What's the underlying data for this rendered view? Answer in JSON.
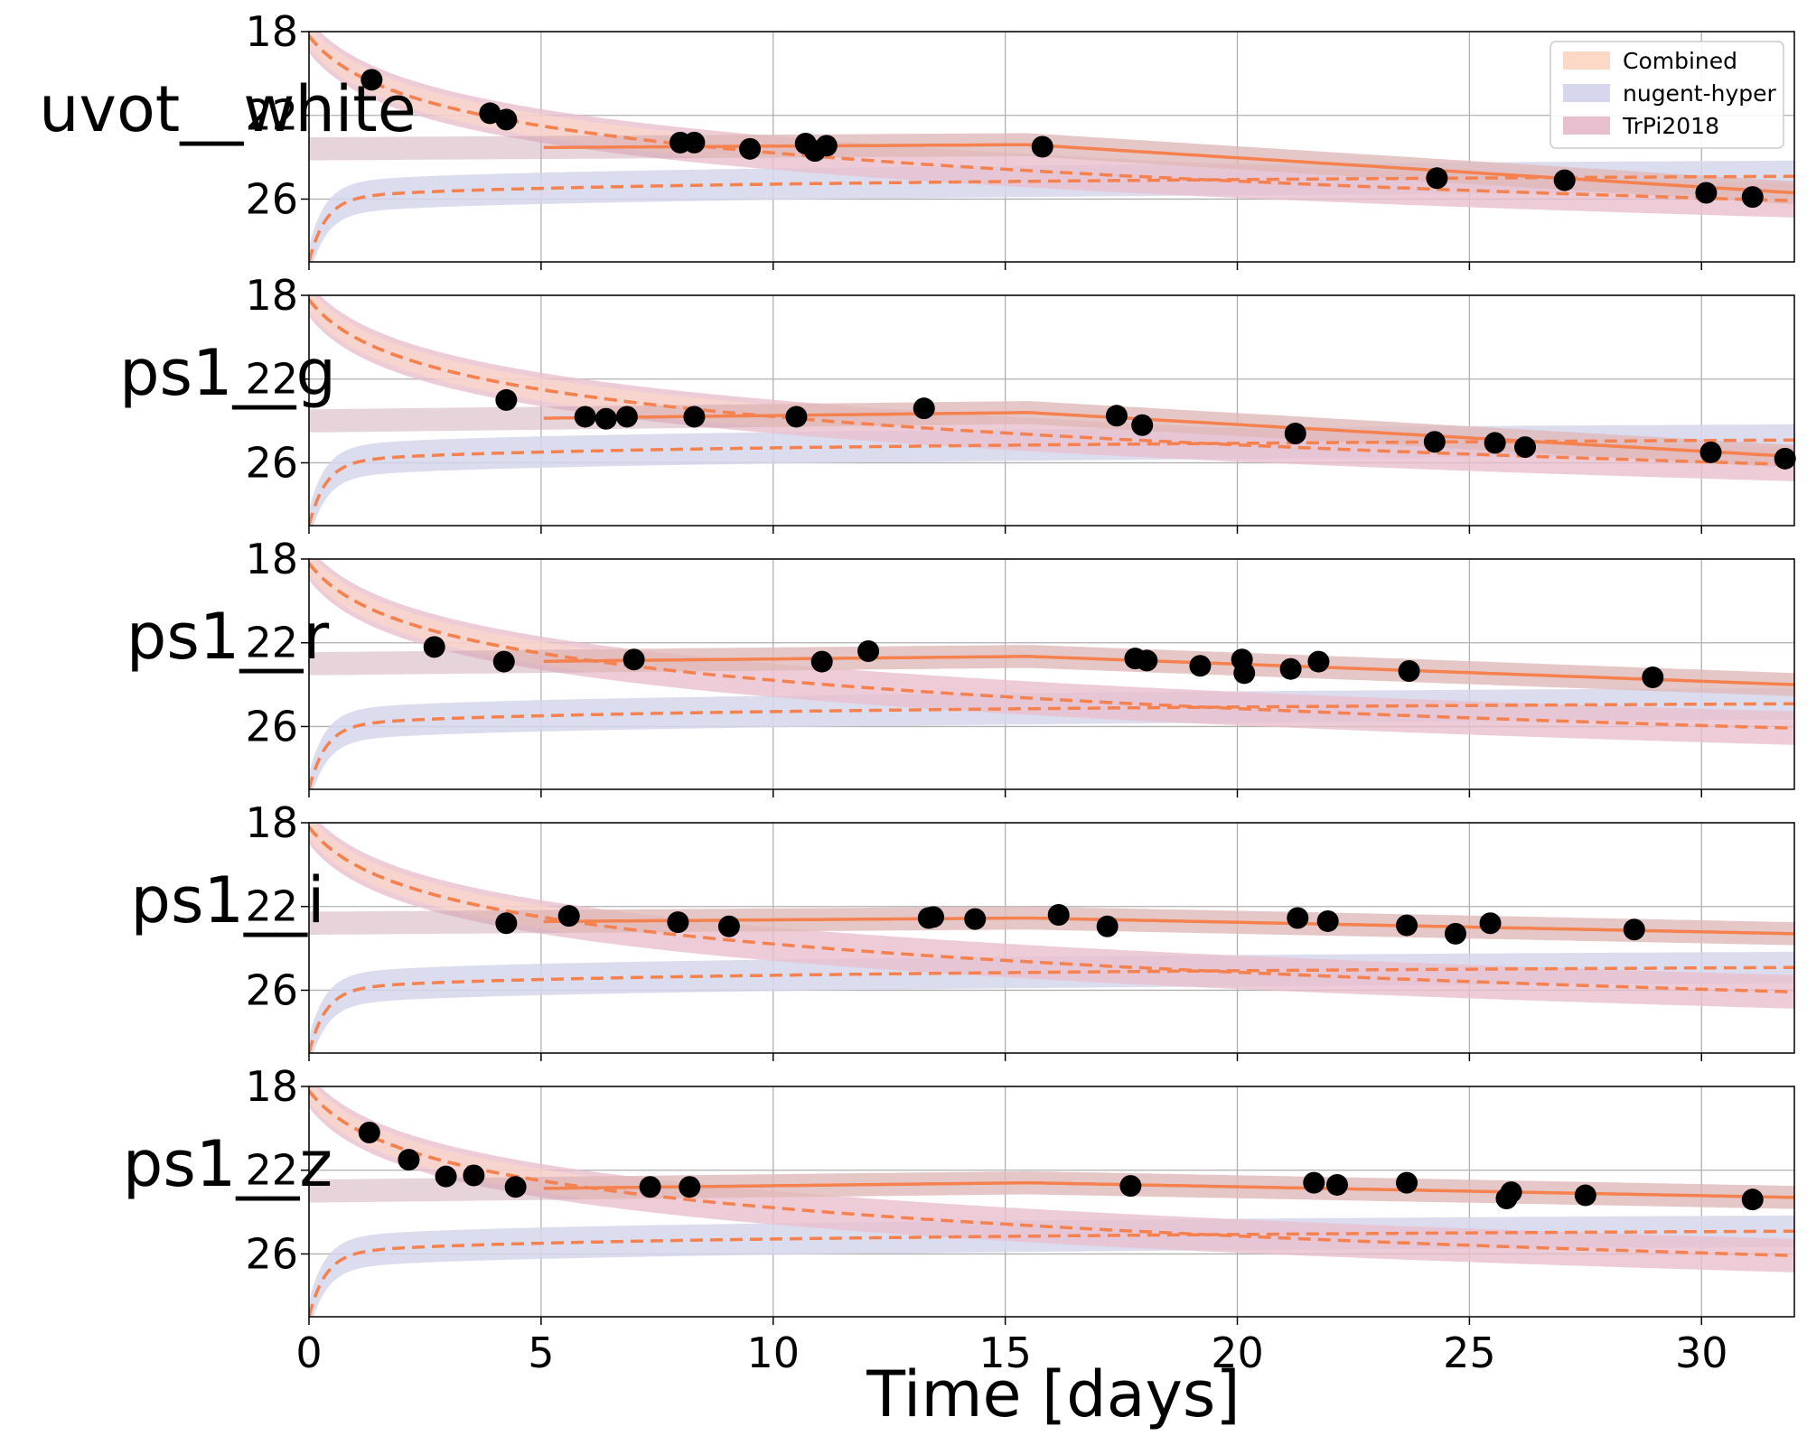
{
  "chart_data": {
    "type": "line",
    "xlabel": "Time [days]",
    "xlim": [
      0,
      32
    ],
    "xticks": [
      0,
      5,
      10,
      15,
      20,
      25,
      30
    ],
    "ylim": [
      29,
      18
    ],
    "yticks": [
      18,
      22,
      26
    ],
    "legend": {
      "placement": "top-right",
      "entries": [
        {
          "name": "Combined",
          "color": "#fdd8c6"
        },
        {
          "name": "nugent-hyper",
          "color": "#d6d6ec"
        },
        {
          "name": "TrPi2018",
          "color": "#e8bfce"
        }
      ]
    },
    "colors": {
      "line": "#f4814e",
      "points": "#000000",
      "grid": "#b0b0b0"
    },
    "panels": [
      {
        "label": "uvot__white",
        "observations": [
          {
            "x": 1.35,
            "y": 20.3
          },
          {
            "x": 3.9,
            "y": 21.9
          },
          {
            "x": 4.25,
            "y": 22.2
          },
          {
            "x": 8.0,
            "y": 23.3
          },
          {
            "x": 8.3,
            "y": 23.3
          },
          {
            "x": 9.5,
            "y": 23.6
          },
          {
            "x": 10.7,
            "y": 23.35
          },
          {
            "x": 10.9,
            "y": 23.7
          },
          {
            "x": 11.15,
            "y": 23.45
          },
          {
            "x": 15.8,
            "y": 23.5
          },
          {
            "x": 24.3,
            "y": 25.0
          },
          {
            "x": 27.05,
            "y": 25.1
          },
          {
            "x": 30.1,
            "y": 25.7
          },
          {
            "x": 31.1,
            "y": 25.9
          }
        ]
      },
      {
        "label": "ps1__g",
        "observations": [
          {
            "x": 4.25,
            "y": 23.0
          },
          {
            "x": 5.95,
            "y": 23.8
          },
          {
            "x": 6.4,
            "y": 23.9
          },
          {
            "x": 6.85,
            "y": 23.8
          },
          {
            "x": 8.3,
            "y": 23.8
          },
          {
            "x": 10.5,
            "y": 23.8
          },
          {
            "x": 13.25,
            "y": 23.4
          },
          {
            "x": 17.4,
            "y": 23.75
          },
          {
            "x": 17.95,
            "y": 24.2
          },
          {
            "x": 21.25,
            "y": 24.6
          },
          {
            "x": 24.25,
            "y": 25.0
          },
          {
            "x": 25.55,
            "y": 25.05
          },
          {
            "x": 26.2,
            "y": 25.25
          },
          {
            "x": 30.2,
            "y": 25.5
          },
          {
            "x": 31.8,
            "y": 25.8
          }
        ]
      },
      {
        "label": "ps1__r",
        "observations": [
          {
            "x": 2.7,
            "y": 22.2
          },
          {
            "x": 4.2,
            "y": 22.9
          },
          {
            "x": 7.0,
            "y": 22.8
          },
          {
            "x": 11.05,
            "y": 22.9
          },
          {
            "x": 12.05,
            "y": 22.4
          },
          {
            "x": 17.8,
            "y": 22.75
          },
          {
            "x": 18.05,
            "y": 22.85
          },
          {
            "x": 19.2,
            "y": 23.1
          },
          {
            "x": 20.1,
            "y": 22.8
          },
          {
            "x": 20.15,
            "y": 23.45
          },
          {
            "x": 21.15,
            "y": 23.25
          },
          {
            "x": 21.75,
            "y": 22.9
          },
          {
            "x": 23.7,
            "y": 23.35
          },
          {
            "x": 28.95,
            "y": 23.65
          }
        ]
      },
      {
        "label": "ps1__i",
        "observations": [
          {
            "x": 4.25,
            "y": 22.8
          },
          {
            "x": 5.6,
            "y": 22.45
          },
          {
            "x": 7.95,
            "y": 22.75
          },
          {
            "x": 9.05,
            "y": 22.95
          },
          {
            "x": 13.35,
            "y": 22.55
          },
          {
            "x": 13.45,
            "y": 22.5
          },
          {
            "x": 14.35,
            "y": 22.6
          },
          {
            "x": 16.15,
            "y": 22.4
          },
          {
            "x": 17.2,
            "y": 22.95
          },
          {
            "x": 21.3,
            "y": 22.55
          },
          {
            "x": 21.95,
            "y": 22.7
          },
          {
            "x": 23.65,
            "y": 22.9
          },
          {
            "x": 24.7,
            "y": 23.3
          },
          {
            "x": 25.45,
            "y": 22.8
          },
          {
            "x": 28.55,
            "y": 23.1
          }
        ]
      },
      {
        "label": "ps1__z",
        "observations": [
          {
            "x": 1.3,
            "y": 20.2
          },
          {
            "x": 2.15,
            "y": 21.5
          },
          {
            "x": 2.95,
            "y": 22.3
          },
          {
            "x": 3.55,
            "y": 22.25
          },
          {
            "x": 4.45,
            "y": 22.8
          },
          {
            "x": 7.35,
            "y": 22.8
          },
          {
            "x": 8.2,
            "y": 22.8
          },
          {
            "x": 17.7,
            "y": 22.75
          },
          {
            "x": 21.65,
            "y": 22.6
          },
          {
            "x": 22.15,
            "y": 22.7
          },
          {
            "x": 23.65,
            "y": 22.6
          },
          {
            "x": 25.8,
            "y": 23.35
          },
          {
            "x": 25.9,
            "y": 23.05
          },
          {
            "x": 27.5,
            "y": 23.2
          },
          {
            "x": 31.1,
            "y": 23.4
          }
        ]
      }
    ]
  }
}
